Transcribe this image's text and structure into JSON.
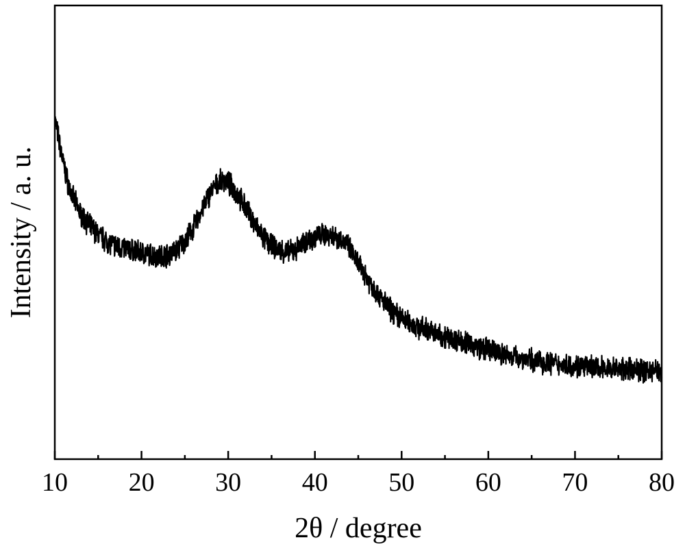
{
  "chart_data": {
    "type": "line",
    "title": "",
    "xlabel": "2θ / degree",
    "ylabel": "Intensity / a. u.",
    "xlim": [
      10,
      80
    ],
    "ylim": [
      0,
      100
    ],
    "x_ticks": [
      10,
      20,
      30,
      40,
      50,
      60,
      70,
      80
    ],
    "y_ticks_labeled": false,
    "grid": false,
    "legend": "none",
    "line_color": "#000000",
    "series": [
      {
        "x": [
          10,
          10.5,
          11,
          11.5,
          12,
          13,
          14,
          15,
          16,
          17,
          18,
          19,
          20,
          21,
          22,
          23,
          24,
          25,
          26,
          27,
          28,
          29,
          29.5,
          30,
          31,
          32,
          33,
          34,
          35,
          36,
          37,
          38,
          39,
          40,
          41,
          42,
          43,
          44,
          45,
          46,
          47,
          48,
          49,
          50,
          51,
          52,
          53,
          54,
          55,
          56,
          57,
          58,
          59,
          60,
          62,
          64,
          66,
          68,
          70,
          72,
          74,
          76,
          78,
          80
        ],
        "values": [
          75,
          70,
          65,
          61,
          58,
          54,
          51.5,
          49.5,
          48,
          47,
          46.5,
          46,
          45.5,
          45,
          44.8,
          45,
          46,
          48,
          51,
          55,
          59,
          61,
          61.5,
          61,
          58.5,
          55.5,
          52,
          49,
          47,
          46,
          45.5,
          46.5,
          48,
          49,
          49.5,
          49.5,
          48.5,
          46.5,
          43,
          40,
          37,
          34.5,
          32.5,
          31,
          30,
          29,
          28.5,
          27.5,
          27,
          26.5,
          26,
          25.2,
          24.6,
          24,
          23,
          22.2,
          21.5,
          20.9,
          20.5,
          20.2,
          20,
          19.8,
          19.6,
          19.5
        ]
      }
    ]
  }
}
